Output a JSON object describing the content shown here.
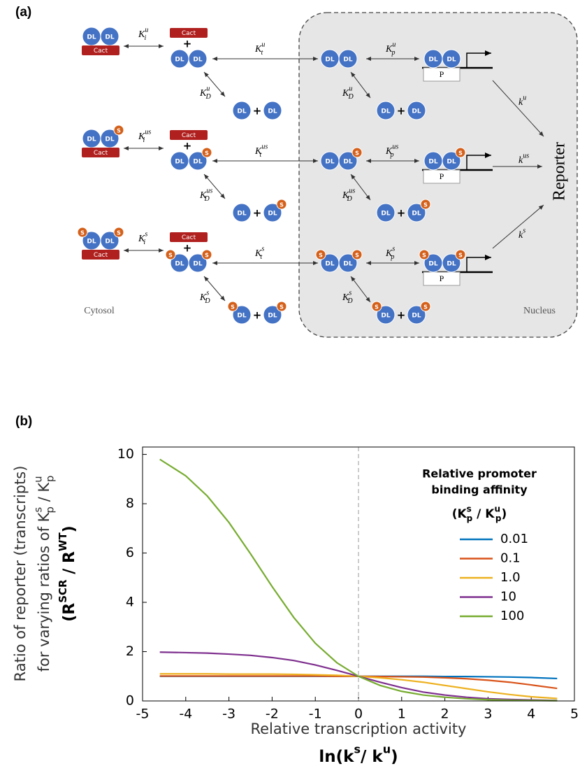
{
  "diagram": {
    "panel_label": "(a)",
    "monomer": "DL",
    "inhibitor": "Cact",
    "phospho": "S",
    "plus": "+",
    "promoter": "P",
    "cytosol": "Cytosol",
    "nucleus": "Nucleus",
    "output": "Reporter",
    "rows": [
      {
        "Ki": [
          {
            "t": "K"
          },
          {
            "sup": "u"
          },
          {
            "sub": "i"
          }
        ],
        "Kt": [
          {
            "t": "K"
          },
          {
            "sup": "u"
          },
          {
            "sub": "t"
          }
        ],
        "KD": [
          {
            "t": "K"
          },
          {
            "sup": "u"
          },
          {
            "sub": "D"
          }
        ],
        "Kp": [
          {
            "t": "K"
          },
          {
            "sup": "u"
          },
          {
            "sub": "p"
          }
        ],
        "k": [
          {
            "t": "k"
          },
          {
            "sup": "u"
          }
        ]
      },
      {
        "Ki": [
          {
            "t": "K"
          },
          {
            "sup": "us"
          },
          {
            "sub": "i"
          }
        ],
        "Kt": [
          {
            "t": "K"
          },
          {
            "sup": "us"
          },
          {
            "sub": "t"
          }
        ],
        "KD": [
          {
            "t": "K"
          },
          {
            "sup": "us"
          },
          {
            "sub": "D"
          }
        ],
        "Kp": [
          {
            "t": "K"
          },
          {
            "sup": "us"
          },
          {
            "sub": "p"
          }
        ],
        "k": [
          {
            "t": "k"
          },
          {
            "sup": "us"
          }
        ]
      },
      {
        "Ki": [
          {
            "t": "K"
          },
          {
            "sup": "s"
          },
          {
            "sub": "i"
          }
        ],
        "Kt": [
          {
            "t": "K"
          },
          {
            "sup": "s"
          },
          {
            "sub": "t"
          }
        ],
        "KD": [
          {
            "t": "K"
          },
          {
            "sup": "s"
          },
          {
            "sub": "D"
          }
        ],
        "Kp": [
          {
            "t": "K"
          },
          {
            "sup": "s"
          },
          {
            "sub": "p"
          }
        ],
        "k": [
          {
            "t": "k"
          },
          {
            "sup": "s"
          }
        ]
      }
    ]
  },
  "chart_data": {
    "type": "line",
    "panel_label": "(b)",
    "xlabel": "Relative transcription activity",
    "xlabel_formula": [
      {
        "t": "ln(k"
      },
      {
        "sup": "s"
      },
      {
        "t": "/ k"
      },
      {
        "sup": "u"
      },
      {
        "t": ")"
      }
    ],
    "ylabel": "Ratio of reporter (transcripts)",
    "ylabel_2": [
      {
        "t": "for varying ratios of K"
      },
      {
        "sup": "s"
      },
      {
        "sub": "p"
      },
      {
        "t": " / K"
      },
      {
        "sup": "u"
      },
      {
        "sub": "p"
      }
    ],
    "ylabel_3": [
      {
        "t": "(R"
      },
      {
        "sup": "SCR"
      },
      {
        "t": " / R"
      },
      {
        "sup": "WT"
      },
      {
        "t": ")"
      }
    ],
    "legend_title": [
      "Relative promoter",
      "binding affinity"
    ],
    "legend_title_formula": [
      {
        "t": "(K"
      },
      {
        "sup": "s"
      },
      {
        "sub": "p"
      },
      {
        "t": " / K"
      },
      {
        "sup": "u"
      },
      {
        "sub": "p"
      },
      {
        "t": ")"
      }
    ],
    "legend_position": "upper right",
    "grid": false,
    "vline": 0,
    "xlim": [
      -5,
      5
    ],
    "xticks": [
      -5,
      -4,
      -3,
      -2,
      -1,
      0,
      1,
      2,
      3,
      4,
      5
    ],
    "ylim": [
      0,
      10.3
    ],
    "yticks": [
      0,
      2,
      4,
      6,
      8,
      10
    ],
    "x": [
      -4.6,
      -4,
      -3.5,
      -3,
      -2.5,
      -2,
      -1.5,
      -1,
      -0.5,
      0,
      0.5,
      1,
      1.5,
      2,
      2.5,
      3,
      3.5,
      4,
      4.6
    ],
    "series": [
      {
        "name": "0.01",
        "color": "#0072bd",
        "values": [
          1.0,
          1.0,
          1.0,
          1.0,
          1.0,
          1.0,
          1.0,
          1.0,
          1.0,
          1.0,
          1.0,
          1.0,
          1.0,
          0.99,
          0.99,
          0.98,
          0.97,
          0.95,
          0.91
        ]
      },
      {
        "name": "0.1",
        "color": "#d95319",
        "values": [
          1.01,
          1.01,
          1.01,
          1.01,
          1.01,
          1.01,
          1.01,
          1.01,
          1.0,
          1.0,
          0.99,
          0.98,
          0.97,
          0.94,
          0.9,
          0.84,
          0.76,
          0.65,
          0.51
        ]
      },
      {
        "name": "1.0",
        "color": "#edb120",
        "values": [
          1.1,
          1.1,
          1.1,
          1.09,
          1.09,
          1.09,
          1.08,
          1.06,
          1.04,
          1.0,
          0.94,
          0.86,
          0.76,
          0.63,
          0.5,
          0.37,
          0.26,
          0.17,
          0.1
        ]
      },
      {
        "name": "10",
        "color": "#7e2f8e",
        "values": [
          1.98,
          1.96,
          1.94,
          1.9,
          1.85,
          1.76,
          1.64,
          1.46,
          1.24,
          1.0,
          0.76,
          0.54,
          0.36,
          0.24,
          0.15,
          0.09,
          0.06,
          0.04,
          0.02
        ]
      },
      {
        "name": "100",
        "color": "#77ac30",
        "values": [
          9.8,
          9.13,
          8.31,
          7.24,
          5.97,
          4.64,
          3.39,
          2.34,
          1.55,
          1.0,
          0.63,
          0.39,
          0.24,
          0.15,
          0.09,
          0.05,
          0.03,
          0.02,
          0.01
        ]
      }
    ]
  }
}
